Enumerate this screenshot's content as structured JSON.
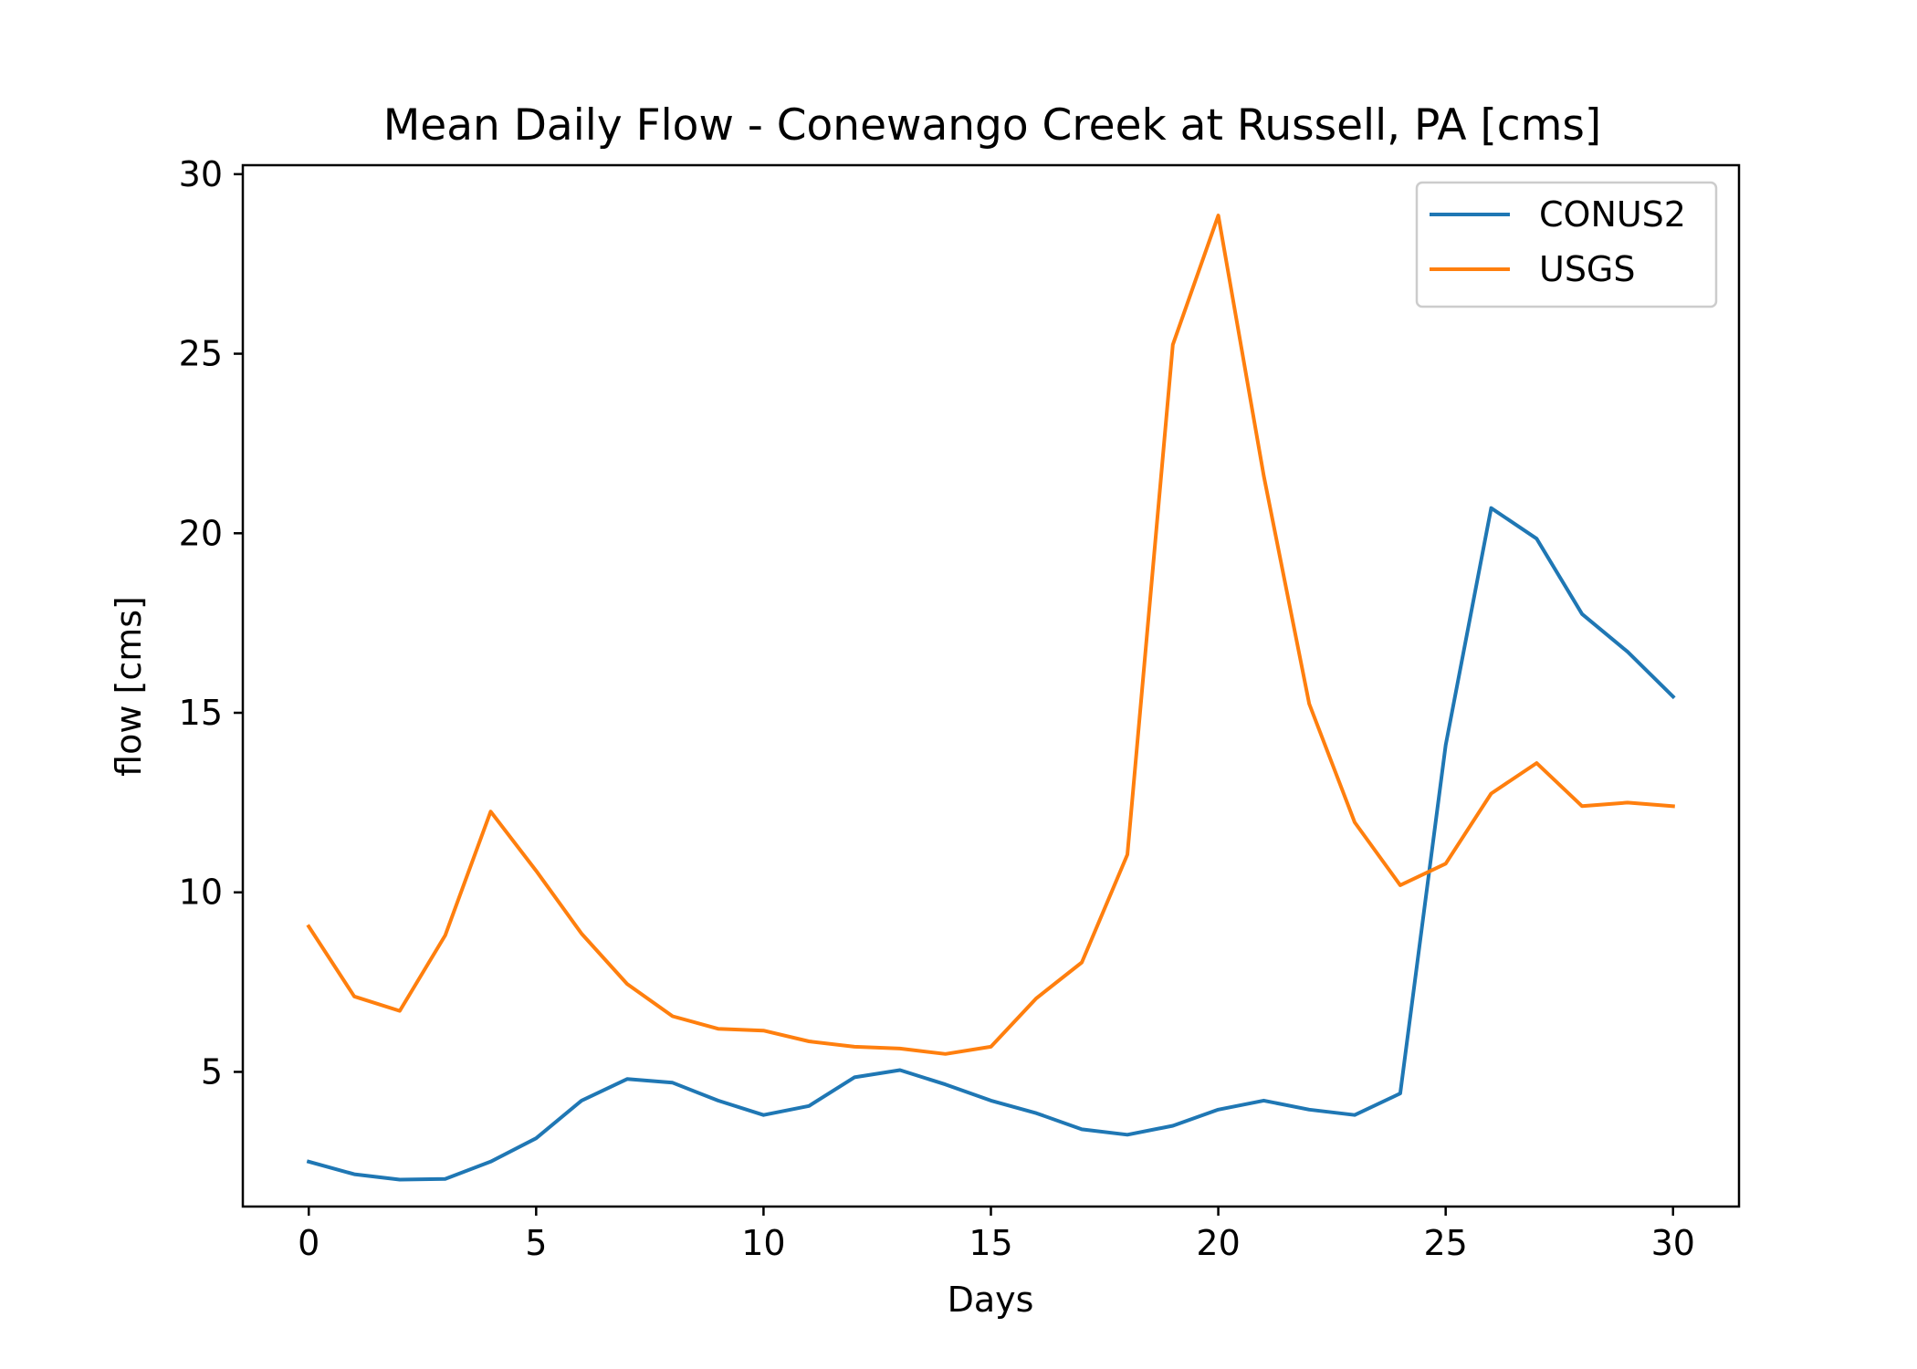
{
  "chart_data": {
    "type": "line",
    "title": "Mean Daily Flow - Conewango Creek at Russell, PA [cms]",
    "xlabel": "Days",
    "ylabel": "flow [cms]",
    "xlim": [
      -1.45,
      31.45
    ],
    "ylim": [
      1.25,
      30.25
    ],
    "xticks": [
      0,
      5,
      10,
      15,
      20,
      25,
      30
    ],
    "yticks": [
      5,
      10,
      15,
      20,
      25,
      30
    ],
    "grid": false,
    "legend_position": "top-right",
    "x": [
      0,
      1,
      2,
      3,
      4,
      5,
      6,
      7,
      8,
      9,
      10,
      11,
      12,
      13,
      14,
      15,
      16,
      17,
      18,
      19,
      20,
      21,
      22,
      23,
      24,
      25,
      26,
      27,
      28,
      29,
      30
    ],
    "series": [
      {
        "name": "CONUS2",
        "color": "#1f77b4",
        "values": [
          2.5,
          2.15,
          2.0,
          2.02,
          2.5,
          3.15,
          4.2,
          4.8,
          4.7,
          4.2,
          3.8,
          4.05,
          4.85,
          5.05,
          4.65,
          4.2,
          3.85,
          3.4,
          3.25,
          3.5,
          3.95,
          4.2,
          3.95,
          3.8,
          4.4,
          14.1,
          20.7,
          19.85,
          17.75,
          16.7,
          15.45
        ]
      },
      {
        "name": "USGS",
        "color": "#ff7f0e",
        "values": [
          9.05,
          7.1,
          6.7,
          8.8,
          12.25,
          10.6,
          8.85,
          7.45,
          6.55,
          6.2,
          6.15,
          5.85,
          5.7,
          5.65,
          5.5,
          5.7,
          7.05,
          8.05,
          11.05,
          25.25,
          28.85,
          21.6,
          15.25,
          11.95,
          10.2,
          10.8,
          12.75,
          13.6,
          12.4,
          12.5,
          12.4
        ]
      }
    ]
  }
}
